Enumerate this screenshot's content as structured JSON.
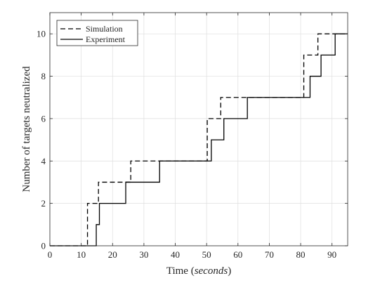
{
  "chart_data": {
    "type": "line",
    "step": true,
    "title": "",
    "xlabel_prefix": "Time (",
    "xlabel_unit": "seconds",
    "xlabel_suffix": ")",
    "ylabel": "Number of targets neutralized",
    "xlim": [
      0,
      95
    ],
    "ylim": [
      0,
      11
    ],
    "xticks": [
      0,
      10,
      20,
      30,
      40,
      50,
      60,
      70,
      80,
      90
    ],
    "yticks": [
      0,
      2,
      4,
      6,
      8,
      10
    ],
    "grid": true,
    "legend_position": "top-left",
    "series": [
      {
        "name": "Simulation",
        "style": "dashed",
        "color": "#000000",
        "x": [
          0,
          12,
          15.5,
          25.8,
          50.2,
          54.5,
          81,
          85.5,
          95
        ],
        "y": [
          0,
          2,
          3,
          4,
          6,
          7,
          9,
          10,
          10
        ]
      },
      {
        "name": "Experiment",
        "style": "solid",
        "color": "#000000",
        "x": [
          0,
          14.8,
          15.8,
          24.2,
          35,
          51.5,
          55.5,
          63,
          83,
          86.5,
          91,
          95
        ],
        "y": [
          0,
          1,
          2,
          3,
          4,
          5,
          6,
          7,
          8,
          9,
          10,
          10
        ]
      }
    ]
  }
}
